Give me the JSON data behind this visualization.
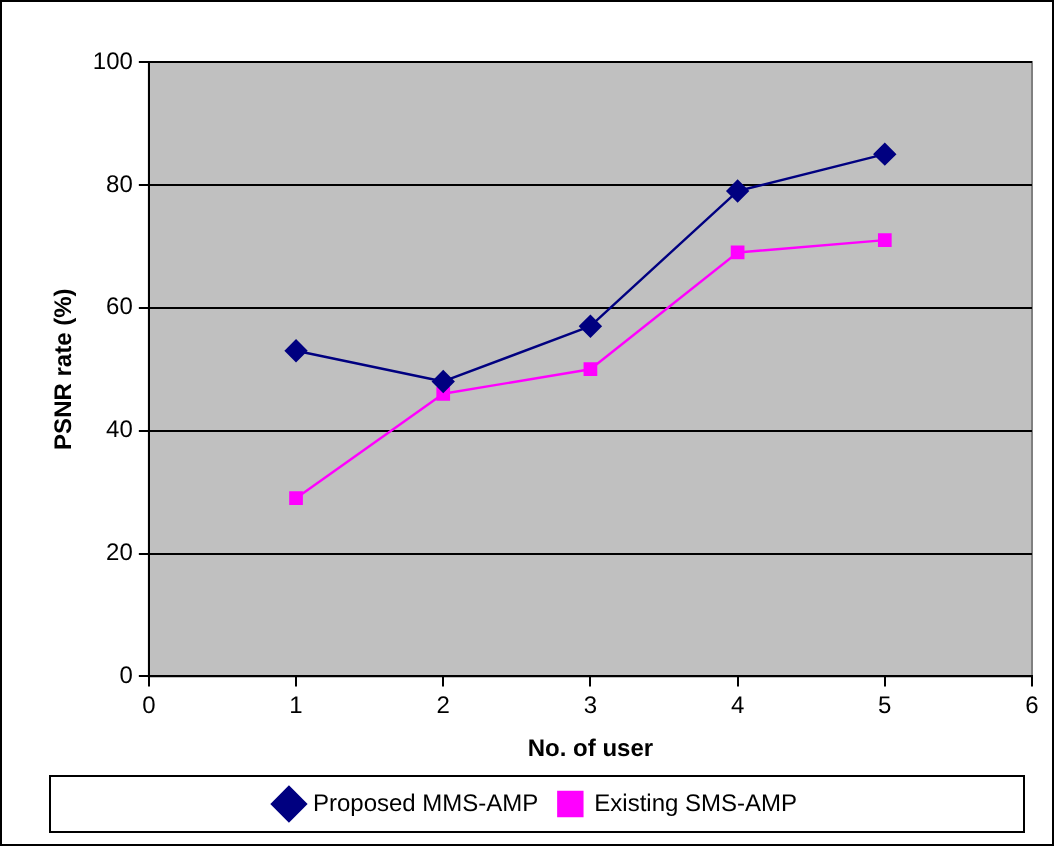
{
  "chart_data": {
    "type": "line",
    "xlabel": "No. of user",
    "ylabel": "PSNR rate (%)",
    "x": [
      1,
      2,
      3,
      4,
      5
    ],
    "series": [
      {
        "name": "Proposed MMS-AMP",
        "color": "#000080",
        "marker": "diamond",
        "values": [
          53,
          48,
          57,
          79,
          85
        ]
      },
      {
        "name": "Existing SMS-AMP",
        "color": "#ff00ff",
        "marker": "square",
        "values": [
          29,
          46,
          50,
          69,
          71
        ]
      }
    ],
    "xlim": [
      0,
      6
    ],
    "xticks": [
      0,
      1,
      2,
      3,
      4,
      5,
      6
    ],
    "ylim": [
      0,
      100
    ],
    "yticks": [
      0,
      20,
      40,
      60,
      80,
      100
    ],
    "grid": "y",
    "legend": "bottom"
  }
}
